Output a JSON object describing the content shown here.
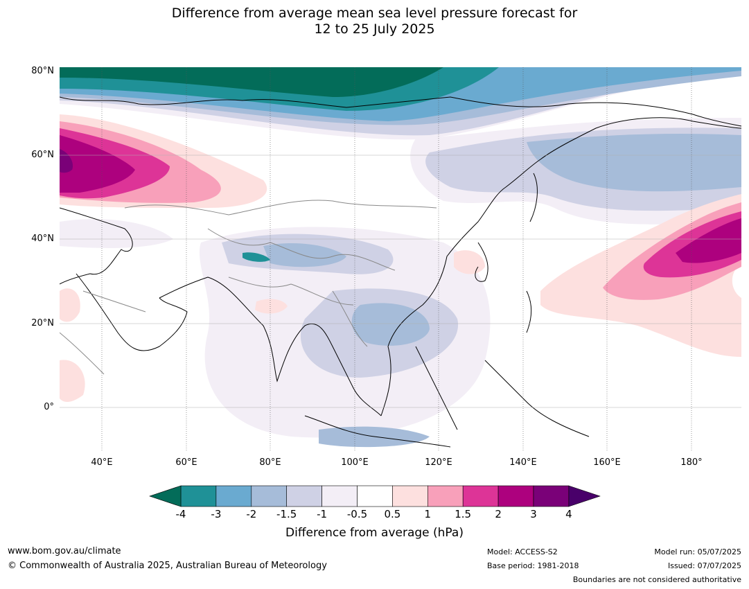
{
  "title": {
    "line1": "Difference from average mean sea level pressure forecast for",
    "line2": "12 to 25 July 2025"
  },
  "map": {
    "lat_labels": [
      "80°N",
      "60°N",
      "40°N",
      "20°N",
      "0°"
    ],
    "lon_labels": [
      "40°E",
      "60°E",
      "80°E",
      "100°E",
      "120°E",
      "140°E",
      "160°E",
      "180°"
    ],
    "lon_range": [
      30,
      192
    ],
    "lat_range": [
      -10,
      80
    ]
  },
  "colorbar": {
    "label": "Difference from average (hPa)",
    "ticks": [
      "-4",
      "-3",
      "-2",
      "-1.5",
      "-1",
      "-0.5",
      "0.5",
      "1",
      "1.5",
      "2",
      "3",
      "4"
    ],
    "colors": [
      "#1f9197",
      "#6aaad0",
      "#a6bcd9",
      "#cfd1e5",
      "#f3eef6",
      "#ffffff",
      "#fde0df",
      "#f8a0ba",
      "#dd3497",
      "#ad017e",
      "#7a0178"
    ],
    "under_color": "#036c59",
    "over_color": "#49006a"
  },
  "footer": {
    "website": "www.bom.gov.au/climate",
    "copyright": "© Commonwealth of Australia 2025, Australian Bureau of Meteorology",
    "model": "Model: ACCESS-S2",
    "base_period": "Base period: 1981-2018",
    "model_run": "Model run: 05/07/2025",
    "issued": "Issued: 07/07/2025",
    "disclaimer": "Boundaries are not considered authoritative"
  }
}
